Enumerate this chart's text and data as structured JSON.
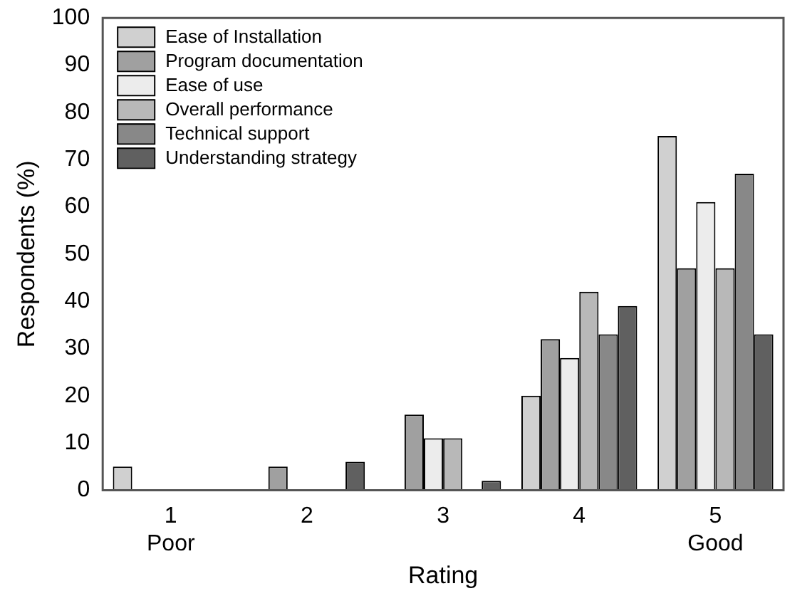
{
  "chart_data": {
    "type": "bar",
    "xlabel": "Rating",
    "ylabel": "Respondents (%)",
    "categories": [
      "1\nPoor",
      "2",
      "3",
      "4",
      "5\nGood"
    ],
    "series": [
      {
        "name": "Ease of Installation",
        "color": "#d0d0d0",
        "values": [
          5,
          0,
          0,
          20,
          75
        ]
      },
      {
        "name": "Program documentation",
        "color": "#a0a0a0",
        "values": [
          0,
          5,
          16,
          32,
          47
        ]
      },
      {
        "name": "Ease of use",
        "color": "#ececec",
        "values": [
          0,
          0,
          11,
          28,
          61
        ]
      },
      {
        "name": "Overall performance",
        "color": "#b8b8b8",
        "values": [
          0,
          0,
          11,
          42,
          47
        ]
      },
      {
        "name": "Technical support",
        "color": "#888888",
        "values": [
          0,
          0,
          0,
          33,
          67
        ]
      },
      {
        "name": "Understanding strategy",
        "color": "#606060",
        "values": [
          0,
          6,
          2,
          39,
          33
        ]
      }
    ],
    "ylim": [
      0,
      100
    ],
    "yticks": [
      0,
      10,
      20,
      30,
      40,
      50,
      60,
      70,
      80,
      90,
      100
    ],
    "grid": false,
    "legend": "top left"
  }
}
